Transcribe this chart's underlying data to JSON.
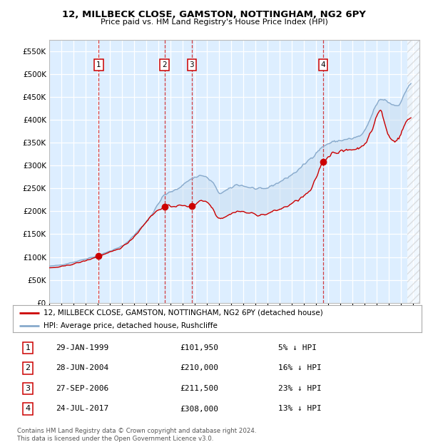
{
  "title1": "12, MILLBECK CLOSE, GAMSTON, NOTTINGHAM, NG2 6PY",
  "title2": "Price paid vs. HM Land Registry's House Price Index (HPI)",
  "sales": [
    {
      "label": "1",
      "date_num": 1999.08,
      "price": 101950,
      "pct": "5%",
      "date_str": "29-JAN-1999",
      "price_str": "£101,950"
    },
    {
      "label": "2",
      "date_num": 2004.5,
      "price": 210000,
      "pct": "16%",
      "date_str": "28-JUN-2004",
      "price_str": "£210,000"
    },
    {
      "label": "3",
      "date_num": 2006.75,
      "price": 211500,
      "pct": "23%",
      "date_str": "27-SEP-2006",
      "price_str": "£211,500"
    },
    {
      "label": "4",
      "date_num": 2017.56,
      "price": 308000,
      "pct": "13%",
      "date_str": "24-JUL-2017",
      "price_str": "£308,000"
    }
  ],
  "legend_line1": "12, MILLBECK CLOSE, GAMSTON, NOTTINGHAM, NG2 6PY (detached house)",
  "legend_line2": "HPI: Average price, detached house, Rushcliffe",
  "footer1": "Contains HM Land Registry data © Crown copyright and database right 2024.",
  "footer2": "This data is licensed under the Open Government Licence v3.0.",
  "red_color": "#cc0000",
  "blue_color": "#88aacc",
  "blue_fill": "#c8ddf0",
  "background_color": "#ddeeff",
  "ylim": [
    0,
    575000
  ],
  "yticks": [
    0,
    50000,
    100000,
    150000,
    200000,
    250000,
    300000,
    350000,
    400000,
    450000,
    500000,
    550000
  ],
  "xlim_start": 1995.0,
  "xlim_end": 2025.5,
  "figsize": [
    6.0,
    6.2
  ],
  "dpi": 100
}
